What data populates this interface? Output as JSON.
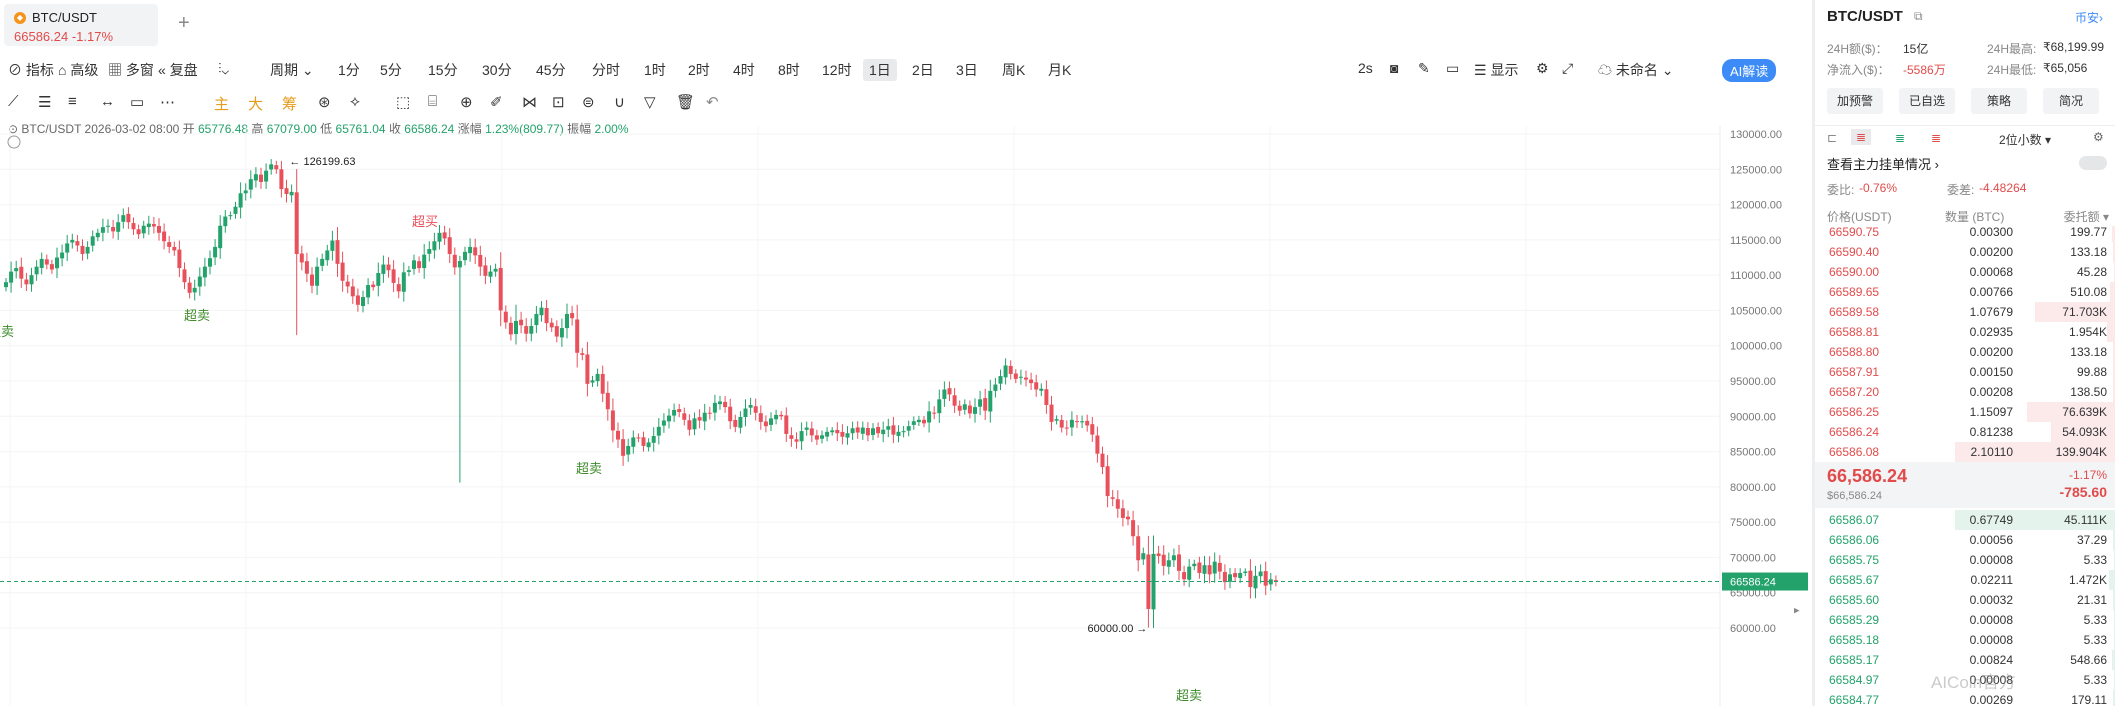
{
  "tab": {
    "symbol": "BTC/USDT",
    "price_change": "66586.24  -1.17%",
    "add": "+"
  },
  "toolbar": {
    "indicators": "指标",
    "advanced": "高级",
    "multi_window": "多窗",
    "replay": "复盘",
    "period": "周期",
    "intervals": [
      "1分",
      "5分",
      "15分",
      "30分",
      "45分",
      "分时",
      "1时",
      "2时",
      "4时",
      "8时",
      "12时",
      "1日",
      "2日",
      "3日",
      "周K",
      "月K"
    ],
    "active_interval": "1日",
    "refresh": "2s",
    "display": "显示",
    "unnamed": "未命名",
    "ai": "AI解读"
  },
  "drawbar": {
    "main": "主",
    "big": "大",
    "chip": "筹"
  },
  "ohlc": {
    "symbol": "BTC/USDT",
    "datetime": "2026-03-02 08:00",
    "open_label": "开",
    "open": "65776.48",
    "high_label": "高",
    "high": "67079.00",
    "low_label": "低",
    "low": "65761.04",
    "close_label": "收",
    "close": "66586.24",
    "chg_label": "涨幅",
    "chg": "1.23%(809.77)",
    "amp_label": "振幅",
    "amp": "2.00%"
  },
  "chart_data": {
    "type": "candlestick",
    "symbol": "BTC/USDT",
    "interval": "1日",
    "y_ticks": [
      "130000.00",
      "125000.00",
      "120000.00",
      "115000.00",
      "110000.00",
      "105000.00",
      "100000.00",
      "95000.00",
      "90000.00",
      "85000.00",
      "80000.00",
      "75000.00",
      "70000.00",
      "65000.00",
      "60000.00"
    ],
    "ylim": [
      58000,
      132000
    ],
    "current_price": "66586.24",
    "high_marker": "126199.63",
    "low_marker": "60000.00",
    "labels": {
      "overbought": "超买",
      "oversold": "超卖"
    },
    "closes": [
      109000,
      110500,
      111000,
      109500,
      108700,
      110000,
      111200,
      112300,
      111500,
      110800,
      112500,
      113200,
      114500,
      115000,
      114200,
      113000,
      114000,
      115500,
      116000,
      116800,
      117000,
      116200,
      117500,
      118500,
      117500,
      116500,
      115800,
      117000,
      117300,
      116900,
      116000,
      114800,
      114000,
      113500,
      111000,
      109000,
      107500,
      108200,
      109800,
      111200,
      112400,
      114000,
      117000,
      118300,
      118500,
      119700,
      121600,
      122000,
      123600,
      124300,
      123200,
      124800,
      125700,
      125000,
      122200,
      121500,
      121800,
      113000,
      111800,
      110200,
      108500,
      111200,
      112300,
      113500,
      114900,
      111600,
      109200,
      108400,
      107000,
      105800,
      106900,
      108600,
      108300,
      110300,
      111500,
      110700,
      108900,
      107700,
      110400,
      110700,
      112100,
      111000,
      112900,
      113700,
      114800,
      116000,
      115200,
      113000,
      111100,
      112000,
      113300,
      114000,
      112800,
      111200,
      109900,
      110500,
      110900,
      105000,
      103300,
      101600,
      103500,
      102900,
      101700,
      102800,
      104500,
      105400,
      103200,
      102600,
      101300,
      102500,
      104500,
      103900,
      99000,
      98700,
      94600,
      95100,
      96000,
      93200,
      91000,
      88000,
      86700,
      84400,
      85800,
      87000,
      86900,
      85800,
      86300,
      87200,
      88500,
      89400,
      90100,
      90900,
      90600,
      89500,
      88100,
      89700,
      89400,
      90500,
      90400,
      91900,
      92100,
      91300,
      89300,
      88500,
      89900,
      91100,
      91600,
      90500,
      89200,
      88600,
      89700,
      90200,
      90000,
      87500,
      86800,
      86400,
      87900,
      88400,
      87300,
      86700,
      87300,
      87800,
      88000,
      87600,
      87100,
      87600,
      88300,
      87700,
      88400,
      87300,
      88300,
      87600,
      88100,
      88600,
      87400,
      87800,
      87900,
      88600,
      89300,
      89500,
      89000,
      90700,
      90500,
      92400,
      93800,
      93100,
      91500,
      90800,
      91700,
      90400,
      91300,
      92400,
      90800,
      93600,
      94500,
      95700,
      97200,
      96000,
      95300,
      95600,
      95200,
      94700,
      93800,
      93900,
      91600,
      89200,
      89600,
      88400,
      88300,
      89500,
      89200,
      89300,
      88700,
      87400,
      84700,
      82800,
      78700,
      78300,
      76900,
      75600,
      75400,
      73000,
      69600,
      70600,
      62700,
      70500,
      70200,
      68800,
      69600,
      70300,
      68100,
      66900,
      68700,
      69100,
      67800,
      68900,
      67600,
      69400,
      68000,
      66500,
      67600,
      67200,
      67800,
      68000,
      65800,
      67400,
      68000,
      66000,
      66900,
      66586.24
    ]
  },
  "panel": {
    "symbol": "BTC/USDT",
    "exchange": "币安",
    "vol_label": "24H额($)：",
    "vol": "15亿",
    "high_label": "24H最高:",
    "high": "₹68,199.99",
    "netflow_label": "净流入($)：",
    "netflow": "-5586万",
    "low_label": "24H最低:",
    "low": "₹65,056",
    "buttons": [
      "加预警",
      "已自选",
      "策略",
      "简况"
    ],
    "precision": "2位小数",
    "depth_title": "查看主力挂单情况",
    "wb_label": "委比:",
    "wb": "-0.76%",
    "wc_label": "委差:",
    "wc": "-4.48264",
    "col_price": "价格(USDT)",
    "col_qty": "数量 (BTC)",
    "col_total": "委托额",
    "asks": [
      {
        "price": "66590.75",
        "qty": "0.00300",
        "total": "199.77"
      },
      {
        "price": "66590.40",
        "qty": "0.00200",
        "total": "133.18"
      },
      {
        "price": "66590.00",
        "qty": "0.00068",
        "total": "45.28"
      },
      {
        "price": "66589.65",
        "qty": "0.00766",
        "total": "510.08"
      },
      {
        "price": "66589.58",
        "qty": "1.07679",
        "total": "71.703K"
      },
      {
        "price": "66588.81",
        "qty": "0.02935",
        "total": "1.954K"
      },
      {
        "price": "66588.80",
        "qty": "0.00200",
        "total": "133.18"
      },
      {
        "price": "66587.91",
        "qty": "0.00150",
        "total": "99.88"
      },
      {
        "price": "66587.20",
        "qty": "0.00208",
        "total": "138.50"
      },
      {
        "price": "66586.25",
        "qty": "1.15097",
        "total": "76.639K"
      },
      {
        "price": "66586.24",
        "qty": "0.81238",
        "total": "54.093K"
      },
      {
        "price": "66586.08",
        "qty": "2.10110",
        "total": "139.904K"
      }
    ],
    "ask_fill": [
      0.02,
      0.01,
      0.005,
      0.03,
      0.5,
      0.05,
      0.01,
      0.01,
      0.01,
      0.55,
      0.4,
      1.0
    ],
    "last_price": "66,586.24",
    "last_usd": "$66,586.24",
    "last_pct": "-1.17%",
    "last_chg": "-785.60",
    "bids": [
      {
        "price": "66586.07",
        "qty": "0.67749",
        "total": "45.111K"
      },
      {
        "price": "66586.06",
        "qty": "0.00056",
        "total": "37.29"
      },
      {
        "price": "66585.75",
        "qty": "0.00008",
        "total": "5.33"
      },
      {
        "price": "66585.67",
        "qty": "0.02211",
        "total": "1.472K"
      },
      {
        "price": "66585.60",
        "qty": "0.00032",
        "total": "21.31"
      },
      {
        "price": "66585.29",
        "qty": "0.00008",
        "total": "5.33"
      },
      {
        "price": "66585.18",
        "qty": "0.00008",
        "total": "5.33"
      },
      {
        "price": "66585.17",
        "qty": "0.00824",
        "total": "548.66"
      },
      {
        "price": "66584.97",
        "qty": "0.00008",
        "total": "5.33"
      },
      {
        "price": "66584.77",
        "qty": "0.00269",
        "total": "179.11"
      }
    ],
    "bid_fill": [
      1.0,
      0.01,
      0.005,
      0.04,
      0.01,
      0.005,
      0.005,
      0.02,
      0.005,
      0.01
    ],
    "watermark": "AICoin官方"
  },
  "colors": {
    "up": "#23a26b",
    "down": "#e8505b",
    "accent": "#3d8bf6",
    "label_up": "#e8505b",
    "label_down": "#3f8c2c"
  }
}
